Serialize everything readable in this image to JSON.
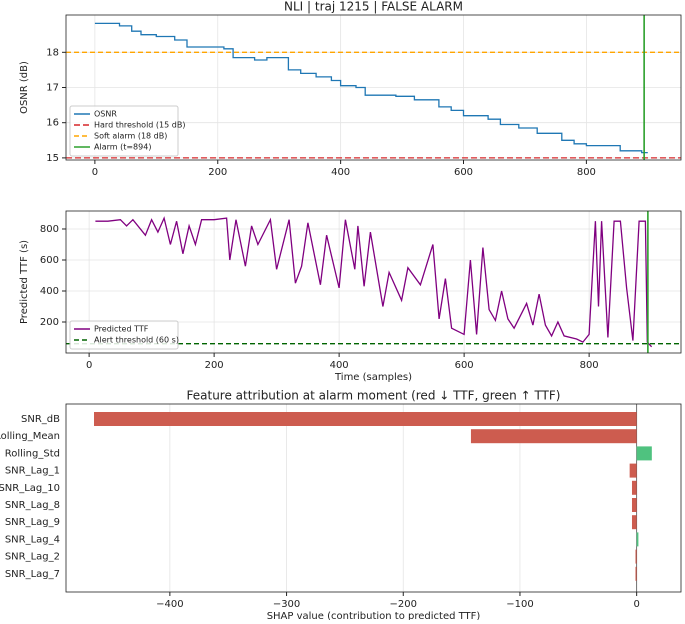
{
  "chart_data": [
    {
      "type": "line",
      "title": "NLI  |  traj 1215  |  FALSE ALARM",
      "ylabel": "OSNR (dB)",
      "xlim": [
        -47,
        954
      ],
      "ylim": [
        14.94,
        19.06
      ],
      "xticks": [
        0,
        200,
        400,
        600,
        800
      ],
      "yticks": [
        15,
        16,
        17,
        18
      ],
      "grid": true,
      "legend": "lower left",
      "series": [
        {
          "name": "OSNR",
          "color": "#1f77b4",
          "x": [
            0,
            40,
            40,
            60,
            60,
            75,
            75,
            100,
            100,
            130,
            130,
            150,
            150,
            210,
            210,
            225,
            225,
            260,
            260,
            280,
            280,
            315,
            315,
            335,
            335,
            360,
            360,
            385,
            385,
            400,
            400,
            425,
            425,
            440,
            440,
            490,
            490,
            520,
            520,
            560,
            560,
            580,
            580,
            600,
            600,
            640,
            640,
            660,
            660,
            690,
            690,
            720,
            720,
            760,
            760,
            780,
            780,
            800,
            800,
            855,
            855,
            890,
            890,
            900
          ],
          "values": [
            18.82,
            18.82,
            18.75,
            18.75,
            18.6,
            18.6,
            18.5,
            18.5,
            18.45,
            18.45,
            18.35,
            18.35,
            18.15,
            18.15,
            18.1,
            18.1,
            17.85,
            17.85,
            17.78,
            17.78,
            17.85,
            17.85,
            17.5,
            17.5,
            17.4,
            17.4,
            17.3,
            17.3,
            17.2,
            17.2,
            17.05,
            17.05,
            17.0,
            17.0,
            16.78,
            16.78,
            16.75,
            16.75,
            16.65,
            16.65,
            16.45,
            16.45,
            16.35,
            16.35,
            16.2,
            16.2,
            16.1,
            16.1,
            15.95,
            15.95,
            15.85,
            15.85,
            15.7,
            15.7,
            15.5,
            15.5,
            15.4,
            15.4,
            15.35,
            15.35,
            15.2,
            15.2,
            15.15,
            15.15
          ]
        }
      ],
      "hlines": [
        {
          "name": "Hard threshold (15 dB)",
          "value": 15,
          "color": "#d62728",
          "dash": "6 3"
        },
        {
          "name": "Soft alarm (18 dB)",
          "value": 18,
          "color": "#ffa500",
          "dash": "5 3"
        }
      ],
      "vlines": [
        {
          "name": "Alarm (t=894)",
          "value": 894,
          "color": "#2ca02c"
        }
      ]
    },
    {
      "type": "line",
      "ylabel": "Predicted TTF (s)",
      "xlabel": "Time (samples)",
      "xlim": [
        -37,
        947
      ],
      "ylim": [
        0,
        916
      ],
      "xticks": [
        0,
        200,
        400,
        600,
        800
      ],
      "yticks": [
        200,
        400,
        600,
        800
      ],
      "grid": true,
      "legend": "lower left",
      "series": [
        {
          "name": "Predicted TTF",
          "color": "#800080",
          "x": [
            10,
            30,
            50,
            60,
            70,
            90,
            100,
            110,
            120,
            130,
            140,
            150,
            160,
            170,
            180,
            200,
            220,
            225,
            235,
            250,
            260,
            270,
            290,
            300,
            320,
            330,
            340,
            350,
            370,
            380,
            400,
            410,
            425,
            430,
            440,
            450,
            470,
            480,
            500,
            510,
            530,
            550,
            560,
            570,
            580,
            600,
            610,
            620,
            630,
            640,
            650,
            660,
            670,
            680,
            700,
            710,
            720,
            730,
            740,
            750,
            760,
            780,
            790,
            800,
            810,
            815,
            820,
            830,
            840,
            850,
            860,
            870,
            880,
            890,
            893,
            900
          ],
          "values": [
            850,
            850,
            860,
            820,
            860,
            760,
            860,
            780,
            870,
            700,
            850,
            640,
            820,
            700,
            860,
            860,
            870,
            600,
            860,
            560,
            820,
            700,
            860,
            540,
            860,
            450,
            560,
            840,
            440,
            760,
            420,
            860,
            540,
            820,
            430,
            780,
            300,
            520,
            340,
            550,
            440,
            700,
            220,
            480,
            160,
            120,
            600,
            120,
            680,
            280,
            210,
            400,
            220,
            160,
            320,
            180,
            380,
            180,
            110,
            200,
            110,
            90,
            70,
            120,
            850,
            300,
            850,
            100,
            850,
            850,
            420,
            80,
            850,
            850,
            70,
            40
          ]
        }
      ],
      "hlines": [
        {
          "name": "Alert threshold (60 s)",
          "value": 60,
          "color": "#006400",
          "dash": "5 3"
        }
      ],
      "vlines": [
        {
          "value": 894,
          "color": "#2ca02c"
        }
      ]
    },
    {
      "type": "barh",
      "title": "Feature attribution at alarm moment (red ↓ TTF, green ↑ TTF)",
      "xlabel": "SHAP value (contribution to predicted TTF)",
      "categories": [
        "SNR_dB",
        "Rolling_Mean",
        "Rolling_Std",
        "SNR_Lag_1",
        "SNR_Lag_10",
        "SNR_Lag_8",
        "SNR_Lag_9",
        "SNR_Lag_4",
        "SNR_Lag_2",
        "SNR_Lag_7"
      ],
      "values": [
        -465,
        -142,
        13,
        -6,
        -4,
        -4,
        -4,
        1.5,
        -1,
        -1
      ],
      "xlim": [
        -489,
        38
      ],
      "xticks": [
        {
          "value": -400,
          "label": "−400"
        },
        {
          "value": -300,
          "label": "−300"
        },
        {
          "value": -200,
          "label": "−200"
        },
        {
          "value": -100,
          "label": "−100"
        },
        0
      ],
      "grid": true,
      "color_negative": "#cd5c4f",
      "color_positive": "#4fc27f"
    }
  ]
}
